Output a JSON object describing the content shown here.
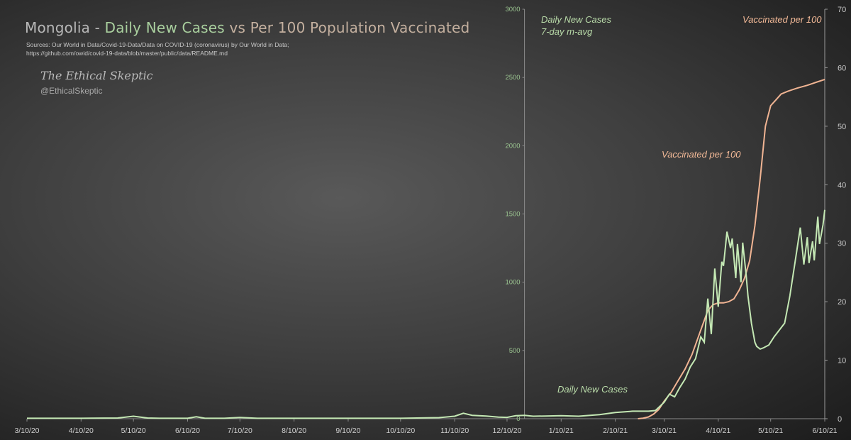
{
  "chart_data": {
    "type": "line",
    "title": {
      "part1": "Mongolia - ",
      "part2": "Daily New Cases",
      "part3": " vs Per 100 Population Vaccinated"
    },
    "sources": [
      "Sources: Our World in Data/Covid-19-Data/Data on COVID-19 (coronavirus) by Our World in Data;",
      "https://github.com/owid/covid-19-data/blob/master/public/data/README.md"
    ],
    "brand": "The Ethical Skeptic",
    "handle": "@EthicalSkeptic",
    "x_ticks": [
      "3/10/20",
      "4/10/20",
      "5/10/20",
      "6/10/20",
      "7/10/20",
      "8/10/20",
      "9/10/20",
      "10/10/20",
      "11/10/20",
      "12/10/20",
      "1/10/21",
      "2/10/21",
      "3/10/21",
      "4/10/21",
      "5/10/21",
      "6/10/21"
    ],
    "xlim": [
      "2020-03-10",
      "2021-06-10"
    ],
    "y_left": {
      "ticks": [
        0,
        500,
        1000,
        1500,
        2000,
        2500,
        3000
      ],
      "ylim": [
        0,
        3000
      ]
    },
    "y_right": {
      "ticks": [
        0,
        10,
        20,
        30,
        40,
        50,
        60,
        70
      ],
      "ylim": [
        0,
        70
      ]
    },
    "annotations": {
      "cases_top": [
        "Daily New Cases",
        "7-day m-avg"
      ],
      "cases_bottom": "Daily New Cases",
      "vacc_mid": "Vaccinated per 100",
      "vacc_top": "Vaccinated per 100"
    },
    "colors": {
      "cases": "#c4e8b4",
      "vaccinated": "#f0b493",
      "left_axis": "#9dc892"
    },
    "series": [
      {
        "axis": "left",
        "x": [
          "2020-03-10",
          "2020-04-10",
          "2020-05-01",
          "2020-05-10",
          "2020-05-18",
          "2020-05-25",
          "2020-06-10",
          "2020-06-15",
          "2020-06-20",
          "2020-07-01",
          "2020-07-10",
          "2020-07-20",
          "2020-08-10",
          "2020-09-10",
          "2020-10-10",
          "2020-11-01",
          "2020-11-10",
          "2020-11-15",
          "2020-11-20",
          "2020-11-28",
          "2020-12-05",
          "2020-12-10",
          "2020-12-15",
          "2020-12-20",
          "2020-12-25",
          "2021-01-01",
          "2021-01-10",
          "2021-01-20",
          "2021-02-01",
          "2021-02-10",
          "2021-02-20",
          "2021-03-01",
          "2021-03-05",
          "2021-03-10",
          "2021-03-13",
          "2021-03-16",
          "2021-03-19",
          "2021-03-22",
          "2021-03-25",
          "2021-03-28",
          "2021-03-31",
          "2021-04-02",
          "2021-04-04",
          "2021-04-06",
          "2021-04-08",
          "2021-04-10",
          "2021-04-12",
          "2021-04-13",
          "2021-04-15",
          "2021-04-17",
          "2021-04-18",
          "2021-04-20",
          "2021-04-21",
          "2021-04-23",
          "2021-04-24",
          "2021-04-26",
          "2021-04-27",
          "2021-04-29",
          "2021-05-01",
          "2021-05-02",
          "2021-05-04",
          "2021-05-06",
          "2021-05-09",
          "2021-05-12",
          "2021-05-15",
          "2021-05-18",
          "2021-05-21",
          "2021-05-24",
          "2021-05-27",
          "2021-05-29",
          "2021-05-31",
          "2021-06-01",
          "2021-06-03",
          "2021-06-04",
          "2021-06-06",
          "2021-06-07",
          "2021-06-08",
          "2021-06-09",
          "2021-06-10"
        ],
        "values": [
          3,
          3,
          5,
          18,
          5,
          3,
          3,
          14,
          3,
          3,
          9,
          3,
          3,
          3,
          3,
          8,
          18,
          40,
          25,
          20,
          12,
          10,
          22,
          25,
          18,
          20,
          22,
          18,
          30,
          45,
          55,
          55,
          60,
          120,
          180,
          160,
          230,
          290,
          380,
          440,
          600,
          560,
          880,
          620,
          1100,
          820,
          1150,
          1120,
          1370,
          1250,
          1320,
          1030,
          1280,
          1000,
          1290,
          1050,
          900,
          700,
          560,
          530,
          510,
          520,
          540,
          600,
          650,
          700,
          900,
          1150,
          1400,
          1130,
          1330,
          1140,
          1300,
          1160,
          1480,
          1280,
          1350,
          1420,
          1530
        ]
      },
      {
        "axis": "right",
        "x": [
          "2021-02-23",
          "2021-02-26",
          "2021-03-01",
          "2021-03-04",
          "2021-03-07",
          "2021-03-10",
          "2021-03-14",
          "2021-03-18",
          "2021-03-22",
          "2021-03-26",
          "2021-03-29",
          "2021-04-01",
          "2021-04-04",
          "2021-04-07",
          "2021-04-10",
          "2021-04-13",
          "2021-04-16",
          "2021-04-19",
          "2021-04-22",
          "2021-04-25",
          "2021-04-28",
          "2021-05-01",
          "2021-05-04",
          "2021-05-07",
          "2021-05-10",
          "2021-05-13",
          "2021-05-16",
          "2021-05-20",
          "2021-05-25",
          "2021-05-31",
          "2021-06-05",
          "2021-06-10"
        ],
        "values": [
          0,
          0.1,
          0.3,
          0.8,
          1.6,
          3,
          4.5,
          6.5,
          8.5,
          11,
          13.5,
          16,
          18.5,
          19.5,
          19.8,
          19.8,
          20,
          20.5,
          22,
          24,
          27,
          33,
          41,
          50,
          53.5,
          54.5,
          55.5,
          56,
          56.5,
          57,
          57.5,
          58
        ]
      }
    ]
  }
}
